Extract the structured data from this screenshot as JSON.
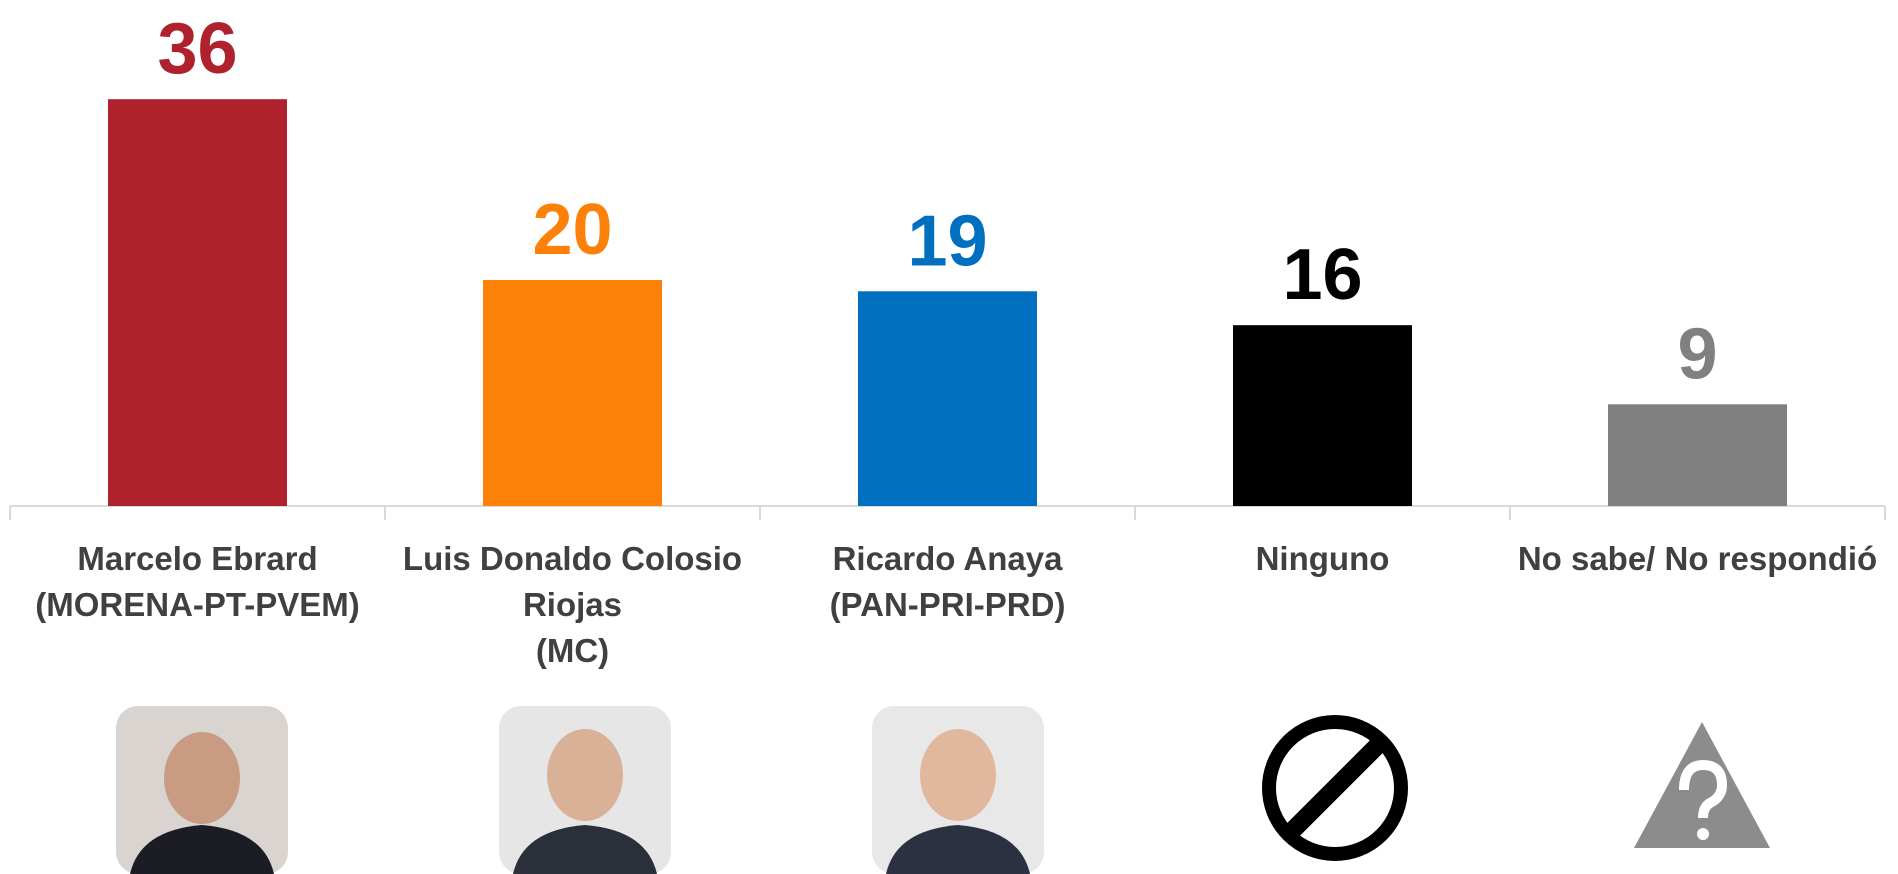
{
  "chart_data": {
    "type": "bar",
    "categories": [
      "Marcelo Ebrard\n(MORENA-PT-PVEM)",
      "Luis Donaldo Colosio\nRiojas\n(MC)",
      "Ricardo Anaya\n(PAN-PRI-PRD)",
      "Ninguno",
      "No sabe/ No respondió"
    ],
    "values": [
      36,
      20,
      19,
      16,
      9
    ],
    "colors": [
      "#b0212e",
      "#fd8008",
      "#006fc0",
      "#000000",
      "#808080"
    ]
  }
}
